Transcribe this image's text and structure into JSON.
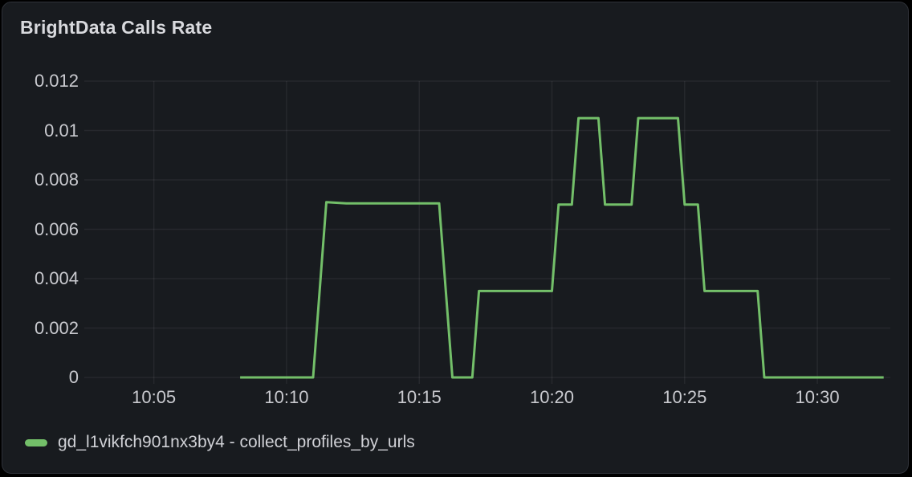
{
  "panel": {
    "title": "BrightData Calls Rate"
  },
  "legend": {
    "label": "gd_l1vikfch901nx3by4 - collect_profiles_by_urls",
    "swatch_color": "#73bf69"
  },
  "colors": {
    "page_bg": "#000000",
    "panel_bg": "#181b1f",
    "panel_border": "#2e3138",
    "grid": "rgba(204,204,220,0.08)",
    "axis_text": "#c9cacf",
    "title_text": "#d8d9dd",
    "series_green": "#73bf69"
  },
  "chart_data": {
    "type": "line",
    "title": "BrightData Calls Rate",
    "xlabel": "",
    "ylabel": "",
    "ylim": [
      0,
      0.012
    ],
    "x_range": [
      "10:02:30",
      "10:32:45"
    ],
    "x_ticks": [
      "10:05",
      "10:10",
      "10:15",
      "10:20",
      "10:25",
      "10:30"
    ],
    "y_ticks": [
      0,
      0.002,
      0.004,
      0.006,
      0.008,
      0.01,
      0.012
    ],
    "y_tick_labels": [
      "0",
      "0.002",
      "0.004",
      "0.006",
      "0.008",
      "0.01",
      "0.012"
    ],
    "grid": true,
    "legend_position": "bottom",
    "line_interpolation": "step-like-linear",
    "series": [
      {
        "name": "gd_l1vikfch901nx3by4 - collect_profiles_by_urls",
        "color": "#73bf69",
        "points": [
          {
            "t": "10:08:15",
            "v": 0
          },
          {
            "t": "10:11:00",
            "v": 0
          },
          {
            "t": "10:11:30",
            "v": 0.0071
          },
          {
            "t": "10:12:15",
            "v": 0.00705
          },
          {
            "t": "10:15:45",
            "v": 0.00705
          },
          {
            "t": "10:16:15",
            "v": 0
          },
          {
            "t": "10:17:00",
            "v": 0
          },
          {
            "t": "10:17:15",
            "v": 0.0035
          },
          {
            "t": "10:20:00",
            "v": 0.0035
          },
          {
            "t": "10:20:15",
            "v": 0.007
          },
          {
            "t": "10:20:45",
            "v": 0.007
          },
          {
            "t": "10:21:00",
            "v": 0.0105
          },
          {
            "t": "10:21:45",
            "v": 0.0105
          },
          {
            "t": "10:22:00",
            "v": 0.007
          },
          {
            "t": "10:23:00",
            "v": 0.007
          },
          {
            "t": "10:23:15",
            "v": 0.0105
          },
          {
            "t": "10:24:45",
            "v": 0.0105
          },
          {
            "t": "10:25:00",
            "v": 0.007
          },
          {
            "t": "10:25:30",
            "v": 0.007
          },
          {
            "t": "10:25:45",
            "v": 0.0035
          },
          {
            "t": "10:27:45",
            "v": 0.0035
          },
          {
            "t": "10:28:00",
            "v": 0
          },
          {
            "t": "10:32:30",
            "v": 0
          }
        ]
      }
    ]
  }
}
